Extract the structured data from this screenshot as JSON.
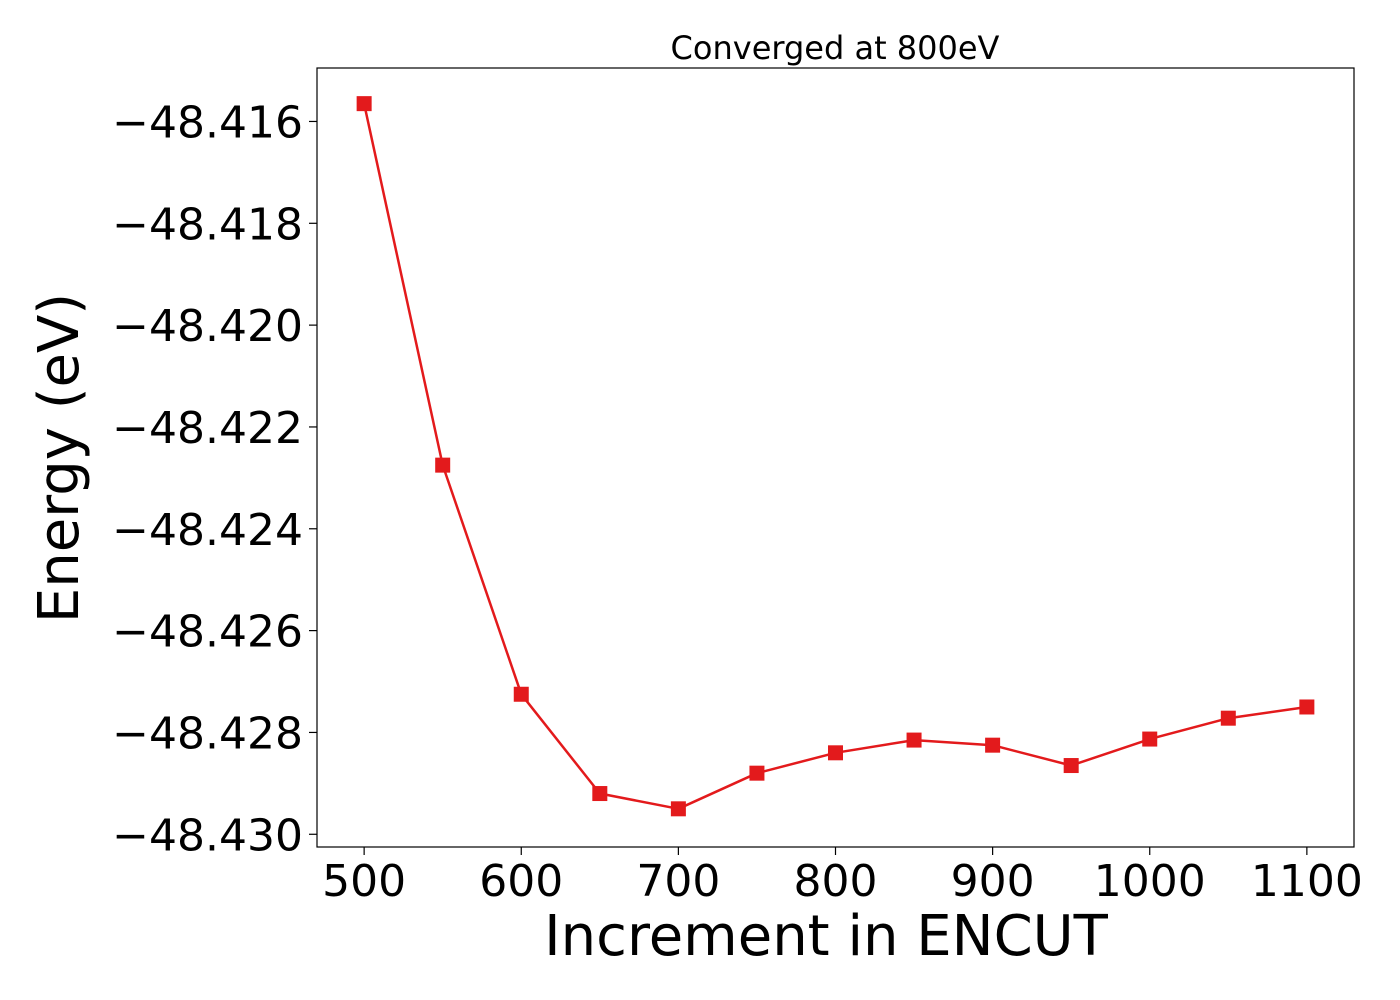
{
  "chart_data": {
    "type": "line",
    "title": "Converged at 800eV",
    "xlabel": "Increment in ENCUT",
    "ylabel": "Energy (eV)",
    "x": [
      500,
      550,
      600,
      650,
      700,
      750,
      800,
      850,
      900,
      950,
      1000,
      1050,
      1100
    ],
    "series": [
      {
        "values": [
          -48.41565,
          -48.42275,
          -48.42725,
          -48.4292,
          -48.4295,
          -48.4288,
          -48.4284,
          -48.42815,
          -48.42825,
          -48.42865,
          -48.42813,
          -48.42772,
          -48.4275
        ],
        "color": "#e31a1c",
        "marker": "square"
      }
    ],
    "xlim": [
      470,
      1130
    ],
    "ylim": [
      -48.43025,
      -48.41495
    ],
    "xticks": [
      500,
      600,
      700,
      800,
      900,
      1000,
      1100
    ],
    "xtick_labels": [
      "500",
      "600",
      "700",
      "800",
      "900",
      "1000",
      "1100"
    ],
    "yticks": [
      -48.416,
      -48.418,
      -48.42,
      -48.422,
      -48.424,
      -48.426,
      -48.428,
      -48.43
    ],
    "ytick_labels": [
      "−48.416",
      "−48.418",
      "−48.420",
      "−48.422",
      "−48.424",
      "−48.426",
      "−48.428",
      "−48.430"
    ],
    "grid": false,
    "legend": "none"
  }
}
